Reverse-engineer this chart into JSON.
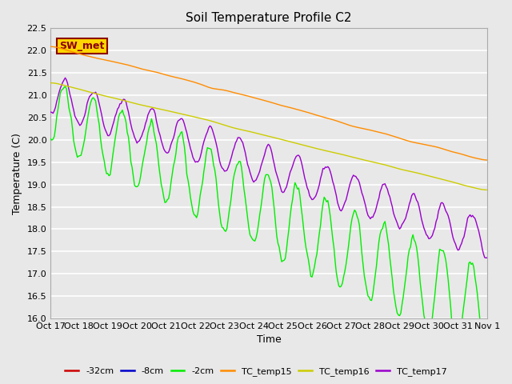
{
  "title": "Soil Temperature Profile C2",
  "xlabel": "Time",
  "ylabel": "Temperature (C)",
  "ylim": [
    16.0,
    22.5
  ],
  "bg_color": "#e8e8e8",
  "grid_color": "white",
  "xtick_labels": [
    "Oct 17",
    "Oct 18",
    "Oct 19",
    "Oct 20",
    "Oct 21",
    "Oct 22",
    "Oct 23",
    "Oct 24",
    "Oct 25",
    "Oct 26",
    "Oct 27",
    "Oct 28",
    "Oct 29",
    "Oct 30",
    "Oct 31",
    "Nov 1"
  ],
  "annotation_text": "SW_met",
  "annotation_color": "#8b0000",
  "annotation_bg": "#ffd700",
  "annotation_edge": "#8b0000",
  "lines": {
    "TC_temp15": {
      "color": "#ff8c00",
      "lw": 1.0
    },
    "TC_temp16": {
      "color": "#cccc00",
      "lw": 1.0
    },
    "TC_temp17": {
      "color": "#9900cc",
      "lw": 1.0
    },
    "neg2cm": {
      "color": "#00ee00",
      "lw": 1.0
    },
    "neg8cm": {
      "color": "#0000cc",
      "lw": 1.0
    },
    "neg32cm": {
      "color": "#cc0000",
      "lw": 1.0
    }
  },
  "legend": [
    {
      "label": "-32cm",
      "color": "#cc0000"
    },
    {
      "label": "-8cm",
      "color": "#0000cc"
    },
    {
      "label": "-2cm",
      "color": "#00ee00"
    },
    {
      "label": "TC_temp15",
      "color": "#ff8c00"
    },
    {
      "label": "TC_temp16",
      "color": "#cccc00"
    },
    {
      "label": "TC_temp17",
      "color": "#9900cc"
    }
  ]
}
